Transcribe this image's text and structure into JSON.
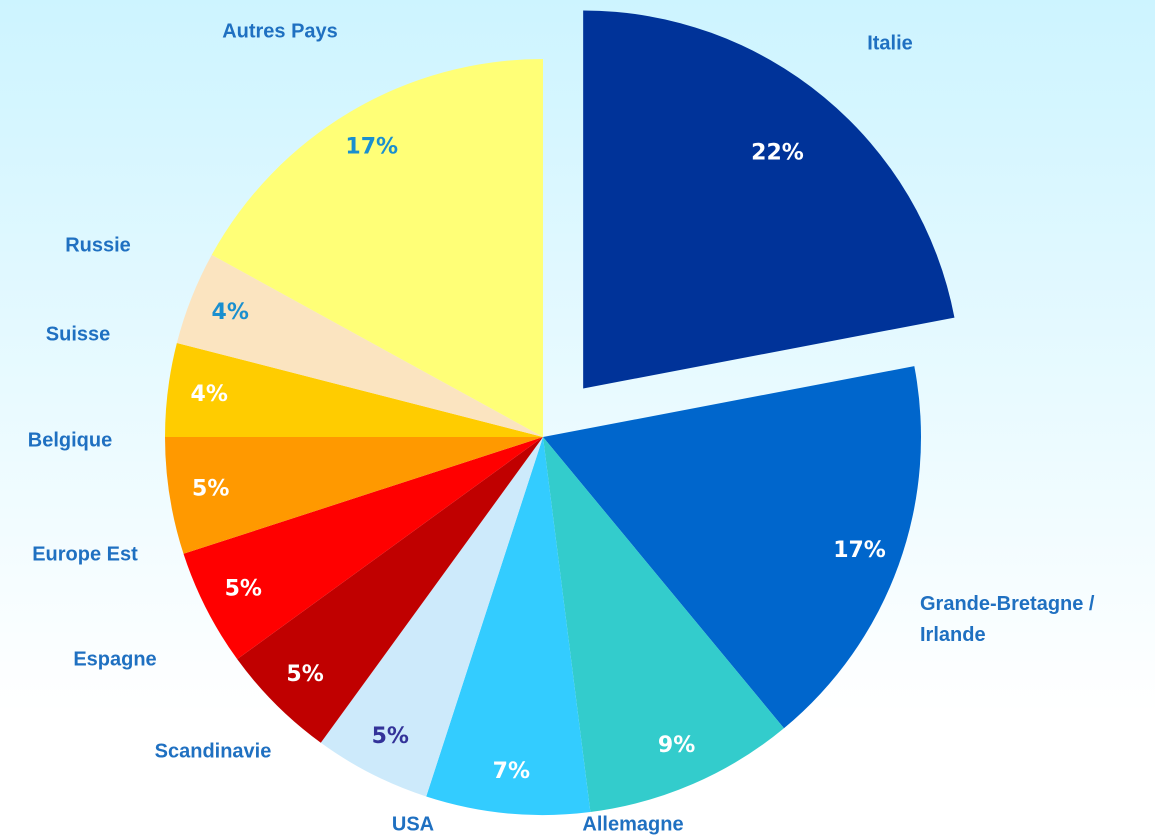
{
  "chart_data": {
    "type": "pie",
    "categories": [
      "Italie",
      "Grande-Bretagne / Irlande",
      "Allemagne",
      "USA",
      "Scandinavie",
      "Espagne",
      "Europe Est",
      "Belgique",
      "Suisse",
      "Russie",
      "Autres Pays"
    ],
    "values": [
      22,
      17,
      9,
      7,
      5,
      5,
      5,
      5,
      4,
      4,
      17
    ],
    "value_labels": [
      "22%",
      "17%",
      "9%",
      "7%",
      "5%",
      "5%",
      "5%",
      "5%",
      "4%",
      "4%",
      "17%"
    ],
    "colors": [
      "#003399",
      "#0066cc",
      "#33cccc",
      "#33ccff",
      "#cdeafb",
      "#c00000",
      "#ff0000",
      "#ff9900",
      "#ffcc00",
      "#fbe4c0",
      "#ffff77"
    ],
    "label_colors": [
      "#ffffff",
      "#ffffff",
      "#ffffff",
      "#ffffff",
      "#333399",
      "#ffffff",
      "#ffffff",
      "#ffffff",
      "#ffffff",
      "#1a8fcf",
      "#1a8fcf"
    ],
    "exploded": [
      0
    ]
  }
}
